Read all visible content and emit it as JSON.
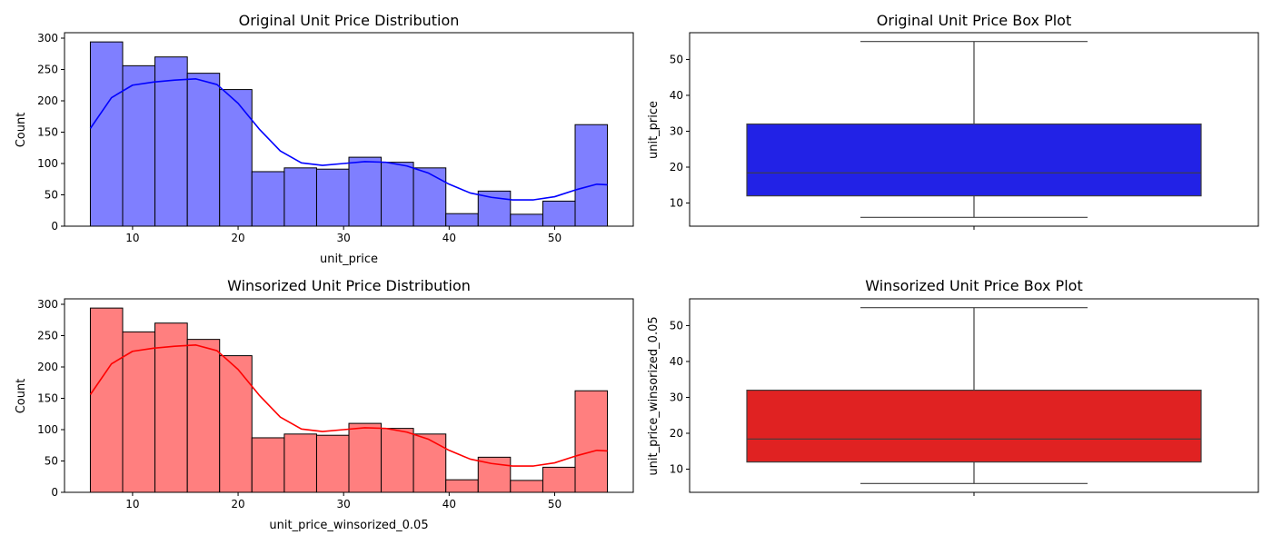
{
  "colors": {
    "hist_original_fill": "#7f7fff",
    "hist_original_line": "#0000ff",
    "hist_winsorized_fill": "#ff7f7f",
    "hist_winsorized_line": "#ff0000",
    "box_original_fill": "#2222e6",
    "box_winsorized_fill": "#e02222",
    "bar_edge": "#000000",
    "box_edge": "#3f3f3f"
  },
  "chart_data": [
    {
      "id": "hist_original",
      "type": "bar",
      "title": "Original Unit Price Distribution",
      "xlabel": "unit_price",
      "ylabel": "Count",
      "bin_edges": [
        6.0,
        9.06,
        12.12,
        15.19,
        18.25,
        21.31,
        24.38,
        27.44,
        30.5,
        33.56,
        36.62,
        39.69,
        42.75,
        45.81,
        48.88,
        51.94,
        55.0
      ],
      "values": [
        294,
        256,
        270,
        244,
        218,
        87,
        93,
        91,
        110,
        102,
        93,
        20,
        56,
        19,
        40,
        162
      ],
      "kde": {
        "x": [
          6,
          8,
          10,
          12,
          14,
          16,
          18,
          20,
          22,
          24,
          26,
          28,
          30,
          32,
          34,
          36,
          38,
          40,
          42,
          44,
          46,
          48,
          50,
          52,
          54,
          55
        ],
        "y": [
          156,
          205,
          225,
          230,
          233,
          235,
          226,
          196,
          155,
          120,
          101,
          97,
          100,
          103,
          102,
          96,
          85,
          67,
          53,
          46,
          42,
          42,
          47,
          58,
          67,
          66
        ]
      },
      "xticks": [
        10,
        20,
        30,
        40,
        50
      ],
      "yticks": [
        0,
        50,
        100,
        150,
        200,
        250,
        300
      ],
      "xlim": [
        3.55,
        57.45
      ],
      "ylim": [
        0,
        308.7
      ]
    },
    {
      "id": "box_original",
      "type": "box",
      "title": "Original Unit Price Box Plot",
      "ylabel": "unit_price",
      "whisker_low": 6.0,
      "q1": 12.0,
      "median": 18.4,
      "q3": 32.0,
      "whisker_high": 55.0,
      "yticks": [
        10,
        20,
        30,
        40,
        50
      ],
      "ylim": [
        3.55,
        57.45
      ]
    },
    {
      "id": "hist_winsorized",
      "type": "bar",
      "title": "Winsorized Unit Price Distribution",
      "xlabel": "unit_price_winsorized_0.05",
      "ylabel": "Count",
      "bin_edges": [
        6.0,
        9.06,
        12.12,
        15.19,
        18.25,
        21.31,
        24.38,
        27.44,
        30.5,
        33.56,
        36.62,
        39.69,
        42.75,
        45.81,
        48.88,
        51.94,
        55.0
      ],
      "values": [
        294,
        256,
        270,
        244,
        218,
        87,
        93,
        91,
        110,
        102,
        93,
        20,
        56,
        19,
        40,
        162
      ],
      "kde": {
        "x": [
          6,
          8,
          10,
          12,
          14,
          16,
          18,
          20,
          22,
          24,
          26,
          28,
          30,
          32,
          34,
          36,
          38,
          40,
          42,
          44,
          46,
          48,
          50,
          52,
          54,
          55
        ],
        "y": [
          156,
          205,
          225,
          230,
          233,
          235,
          226,
          196,
          155,
          120,
          101,
          97,
          100,
          103,
          102,
          96,
          85,
          67,
          53,
          46,
          42,
          42,
          47,
          58,
          67,
          66
        ]
      },
      "xticks": [
        10,
        20,
        30,
        40,
        50
      ],
      "yticks": [
        0,
        50,
        100,
        150,
        200,
        250,
        300
      ],
      "xlim": [
        3.55,
        57.45
      ],
      "ylim": [
        0,
        308.7
      ]
    },
    {
      "id": "box_winsorized",
      "type": "box",
      "title": "Winsorized Unit Price Box Plot",
      "ylabel": "unit_price_winsorized_0.05",
      "whisker_low": 6.0,
      "q1": 12.0,
      "median": 18.4,
      "q3": 32.0,
      "whisker_high": 55.0,
      "yticks": [
        10,
        20,
        30,
        40,
        50
      ],
      "ylim": [
        3.55,
        57.45
      ]
    }
  ]
}
